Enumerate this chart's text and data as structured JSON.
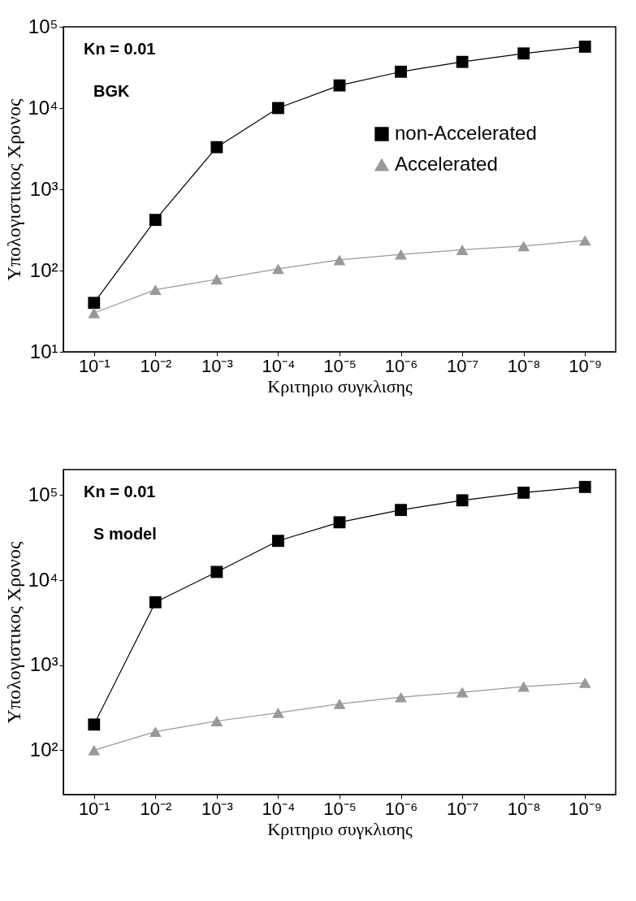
{
  "chart_data": [
    {
      "type": "line",
      "ylabel": "Υπολογιστικος Χρονος",
      "xlabel": "Κριτηριο συγκλισης",
      "annotations": [
        "Kn = 0.01",
        "BGK"
      ],
      "categories": [
        "10⁻¹",
        "10⁻²",
        "10⁻³",
        "10⁻⁴",
        "10⁻⁵",
        "10⁻⁶",
        "10⁻⁷",
        "10⁻⁸",
        "10⁻⁹"
      ],
      "log": true,
      "ylim": [
        10,
        100000
      ],
      "yticks": [
        {
          "value": 10,
          "label": "10¹"
        },
        {
          "value": 100,
          "label": "10²"
        },
        {
          "value": 1000,
          "label": "10³"
        },
        {
          "value": 10000,
          "label": "10⁴"
        },
        {
          "value": 100000,
          "label": "10⁵"
        }
      ],
      "grid": false,
      "legend": "right",
      "series": [
        {
          "name": "non-Accelerated",
          "color": "#000000",
          "marker": "square",
          "values": [
            40,
            420,
            3300,
            10000,
            19000,
            28000,
            37000,
            47000,
            57000
          ]
        },
        {
          "name": "Accelerated",
          "color": "#999999",
          "marker": "triangle",
          "values": [
            30,
            58,
            78,
            105,
            135,
            158,
            180,
            200,
            235
          ]
        }
      ]
    },
    {
      "type": "line",
      "ylabel": "Υπολογιστικος Χρονος",
      "xlabel": "Κριτηριο συγκλισης",
      "annotations": [
        "Kn = 0.01",
        "S model"
      ],
      "categories": [
        "10⁻¹",
        "10⁻²",
        "10⁻³",
        "10⁻⁴",
        "10⁻⁵",
        "10⁻⁶",
        "10⁻⁷",
        "10⁻⁸",
        "10⁻⁹"
      ],
      "log": true,
      "ylim": [
        30,
        200000
      ],
      "yticks": [
        {
          "value": 100,
          "label": "10²"
        },
        {
          "value": 1000,
          "label": "10³"
        },
        {
          "value": 10000,
          "label": "10⁴"
        },
        {
          "value": 100000,
          "label": "10⁵"
        }
      ],
      "grid": false,
      "legend": "right",
      "series": [
        {
          "name": "non-Accelerated",
          "color": "#000000",
          "marker": "square",
          "values": [
            200,
            5500,
            12500,
            29000,
            48000,
            67000,
            87000,
            107000,
            125000
          ]
        },
        {
          "name": "Accelerated",
          "color": "#999999",
          "marker": "triangle",
          "values": [
            100,
            165,
            220,
            275,
            350,
            420,
            480,
            560,
            620
          ]
        }
      ]
    }
  ]
}
